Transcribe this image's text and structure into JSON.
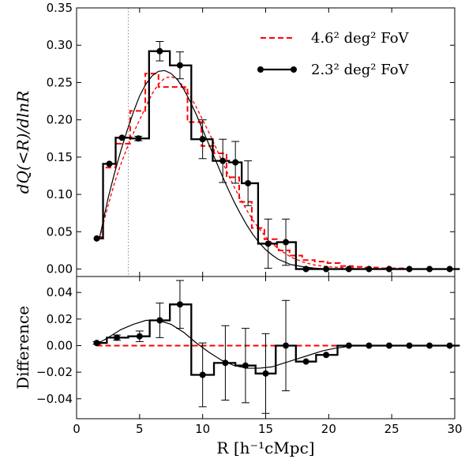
{
  "chart_data": {
    "type": "line",
    "xlabel": "R [h⁻¹cMpc]",
    "xlim": [
      0,
      30
    ],
    "xticks": [
      0,
      5,
      10,
      15,
      20,
      25,
      30
    ],
    "xtick_labels": [
      "0",
      "5",
      "10",
      "15",
      "20",
      "25",
      "30"
    ],
    "vline_x": 4.1,
    "panels": [
      {
        "id": "top",
        "ylabel": "dQ(<R)/dlnR",
        "ylim": [
          -0.01,
          0.35
        ],
        "yticks": [
          0.0,
          0.05,
          0.1,
          0.15,
          0.2,
          0.25,
          0.3,
          0.35
        ],
        "ytick_labels": [
          "0.00",
          "0.05",
          "0.10",
          "0.15",
          "0.20",
          "0.25",
          "0.30",
          "0.35"
        ],
        "legend": {
          "placement": "top-right",
          "entries": [
            {
              "label": "4.6² deg²  FoV",
              "color": "#ff0000",
              "style": "dashed"
            },
            {
              "label": "2.3² deg²  FoV",
              "color": "#000000",
              "style": "solid-marker"
            }
          ]
        },
        "series": [
          {
            "name": "4.6² deg²  FoV",
            "color": "#ff0000",
            "style": "dashed-step",
            "x": [
              1.6,
              2.6,
              3.6,
              4.9,
              6.0,
              7.0,
              8.2,
              9.4,
              10.4,
              11.4,
              12.4,
              13.4,
              14.4,
              15.4,
              16.4,
              17.4,
              18.4,
              19.4,
              20.4,
              21.4,
              22.4,
              23.4,
              24.4,
              25.4,
              26.4,
              27.4,
              28.4,
              29.4
            ],
            "y": [
              0.043,
              0.136,
              0.168,
              0.212,
              0.262,
              0.244,
              0.244,
              0.197,
              0.165,
              0.155,
              0.123,
              0.09,
              0.055,
              0.04,
              0.025,
              0.018,
              0.012,
              0.01,
              0.008,
              0.004,
              0.003,
              0.002,
              0.001,
              0.001,
              0.0,
              0.0,
              0.0,
              0.0
            ]
          },
          {
            "name": "4.6² deg²  FoV smooth",
            "color": "#ff0000",
            "style": "dashed-curve",
            "x": [
              1.8,
              2.5,
              3.0,
              3.5,
              4.0,
              4.5,
              5.0,
              5.5,
              6.0,
              6.5,
              7.0,
              7.5,
              8.0,
              8.5,
              9.0,
              9.5,
              10.0,
              10.5,
              11.0,
              11.5,
              12.0,
              12.5,
              13.0,
              13.5,
              14.0,
              15.0,
              16.0,
              17.0,
              18.0,
              19.0,
              20.0,
              21.0,
              22.0,
              23.0
            ],
            "y": [
              0.04,
              0.085,
              0.115,
              0.14,
              0.162,
              0.182,
              0.2,
              0.218,
              0.235,
              0.248,
              0.256,
              0.258,
              0.254,
              0.244,
              0.232,
              0.217,
              0.2,
              0.183,
              0.165,
              0.146,
              0.128,
              0.11,
              0.094,
              0.079,
              0.065,
              0.043,
              0.027,
              0.016,
              0.009,
              0.005,
              0.003,
              0.002,
              0.001,
              0.0
            ]
          },
          {
            "name": "2.3² deg²  FoV",
            "color": "#000000",
            "style": "step-markers",
            "x": [
              1.6,
              2.6,
              3.6,
              4.9,
              6.6,
              8.2,
              10.0,
              11.6,
              12.6,
              13.6,
              15.2,
              16.6,
              18.2,
              19.8,
              21.6,
              23.2,
              24.8,
              26.4,
              28.0,
              29.6
            ],
            "y": [
              0.041,
              0.141,
              0.176,
              0.175,
              0.292,
              0.273,
              0.174,
              0.145,
              0.143,
              0.115,
              0.034,
              0.036,
              0.0,
              0.0,
              0.0,
              0.0,
              0.0,
              0.0,
              0.0,
              0.0
            ],
            "yerr": [
              0.0,
              0.0,
              0.0,
              0.003,
              0.013,
              0.018,
              0.026,
              0.029,
              0.028,
              0.03,
              0.033,
              0.031,
              0.0,
              0.0,
              0.0,
              0.0,
              0.0,
              0.0,
              0.0,
              0.0
            ]
          },
          {
            "name": "2.3² deg²  FoV fit",
            "color": "#000000",
            "style": "thin-curve",
            "x": [
              1.8,
              2.5,
              3.0,
              3.5,
              4.0,
              4.5,
              5.0,
              5.5,
              6.0,
              6.5,
              7.0,
              7.5,
              8.0,
              8.5,
              9.0,
              9.5,
              10.0,
              10.5,
              11.0,
              11.5,
              12.0,
              12.5,
              13.0,
              13.5,
              14.0,
              14.5,
              15.0,
              15.5,
              16.0,
              17.0,
              18.0,
              19.0,
              20.0
            ],
            "y": [
              0.04,
              0.095,
              0.128,
              0.158,
              0.185,
              0.21,
              0.232,
              0.248,
              0.259,
              0.265,
              0.266,
              0.262,
              0.254,
              0.241,
              0.225,
              0.207,
              0.187,
              0.167,
              0.147,
              0.127,
              0.108,
              0.09,
              0.074,
              0.059,
              0.046,
              0.035,
              0.026,
              0.019,
              0.013,
              0.006,
              0.003,
              0.001,
              0.0
            ]
          }
        ]
      },
      {
        "id": "bottom",
        "ylabel": "Difference",
        "ylim": [
          -0.055,
          0.052
        ],
        "yticks": [
          -0.04,
          -0.02,
          0.0,
          0.02,
          0.04
        ],
        "ytick_labels": [
          "−0.04",
          "−0.02",
          "0.00",
          "0.02",
          "0.04"
        ],
        "series": [
          {
            "name": "reference",
            "color": "#ff0000",
            "style": "dashed",
            "x": [
              1.6,
              29.8
            ],
            "y": [
              0.0,
              0.0
            ]
          },
          {
            "name": "difference",
            "color": "#000000",
            "style": "step-markers",
            "x": [
              1.6,
              3.2,
              5.0,
              6.6,
              8.2,
              10.0,
              11.8,
              13.4,
              15.0,
              16.6,
              18.2,
              19.8,
              21.6,
              23.2,
              24.8,
              26.4,
              28.0,
              29.6
            ],
            "y": [
              0.002,
              0.006,
              0.007,
              0.019,
              0.031,
              -0.022,
              -0.013,
              -0.015,
              -0.021,
              0.0,
              -0.012,
              -0.007,
              0.0,
              0.0,
              0.0,
              0.0,
              0.0,
              0.0
            ],
            "yerr": [
              0.001,
              0.002,
              0.004,
              0.013,
              0.018,
              0.024,
              0.028,
              0.028,
              0.03,
              0.034,
              0.0,
              0.0,
              0.0,
              0.0,
              0.0,
              0.0,
              0.0,
              0.0
            ]
          },
          {
            "name": "difference fit",
            "color": "#000000",
            "style": "thin-curve",
            "x": [
              1.6,
              2.5,
              3.5,
              4.5,
              5.5,
              6.5,
              7.5,
              8.5,
              9.5,
              10.5,
              11.5,
              12.5,
              13.5,
              14.5,
              15.5,
              16.5,
              17.5,
              18.5,
              19.5,
              20.5,
              22.0,
              24.0
            ],
            "y": [
              0.001,
              0.006,
              0.012,
              0.016,
              0.019,
              0.019,
              0.016,
              0.01,
              0.002,
              -0.005,
              -0.011,
              -0.015,
              -0.017,
              -0.017,
              -0.016,
              -0.013,
              -0.01,
              -0.007,
              -0.004,
              -0.002,
              0.0,
              0.0
            ]
          }
        ]
      }
    ]
  }
}
